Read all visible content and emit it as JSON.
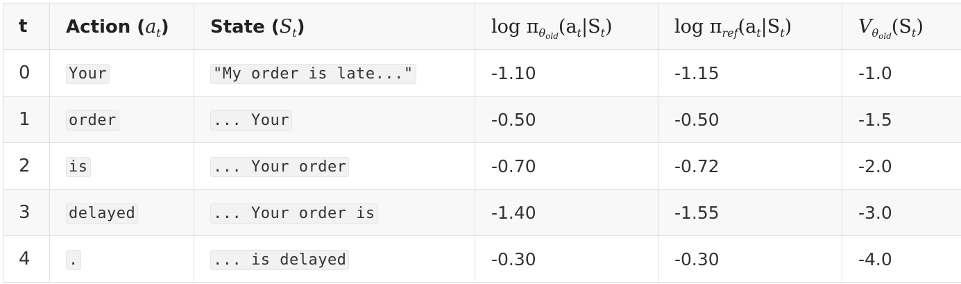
{
  "table": {
    "headers": {
      "t": "t",
      "action_text": "Action (",
      "action_math_base": "a",
      "action_math_sub": "t",
      "action_close": ")",
      "state_text": "State (",
      "state_math_base": "S",
      "state_math_sub": "t",
      "state_close": ")",
      "logpi_old": "log π",
      "logpi_old_sub_theta": "θ",
      "logpi_old_sub_old": "old",
      "logpi_old_args": "(a",
      "logpi_old_args_sub": "t",
      "logpi_old_args_mid": "|S",
      "logpi_old_args_sub2": "t",
      "logpi_old_args_end": ")",
      "logpi_ref": "log π",
      "logpi_ref_sub": "ref",
      "logpi_ref_args": "(a",
      "logpi_ref_args_sub": "t",
      "logpi_ref_args_mid": "|S",
      "logpi_ref_args_sub2": "t",
      "logpi_ref_args_end": ")",
      "value": "V",
      "value_sub_theta": "θ",
      "value_sub_old": "old",
      "value_args": "(S",
      "value_args_sub": "t",
      "value_args_end": ")"
    },
    "rows": [
      {
        "t": "0",
        "action": "Your",
        "state": "\"My order is late...\"",
        "logp_old": "-1.10",
        "logp_ref": "-1.15",
        "value": "-1.0"
      },
      {
        "t": "1",
        "action": "order",
        "state": "... Your",
        "logp_old": "-0.50",
        "logp_ref": "-0.50",
        "value": "-1.5"
      },
      {
        "t": "2",
        "action": "is",
        "state": "... Your order",
        "logp_old": "-0.70",
        "logp_ref": "-0.72",
        "value": "-2.0"
      },
      {
        "t": "3",
        "action": "delayed",
        "state": "... Your order is",
        "logp_old": "-1.40",
        "logp_ref": "-1.55",
        "value": "-3.0"
      },
      {
        "t": "4",
        "action": ".",
        "state": "... is delayed",
        "logp_old": "-0.30",
        "logp_ref": "-0.30",
        "value": "-4.0"
      }
    ]
  }
}
